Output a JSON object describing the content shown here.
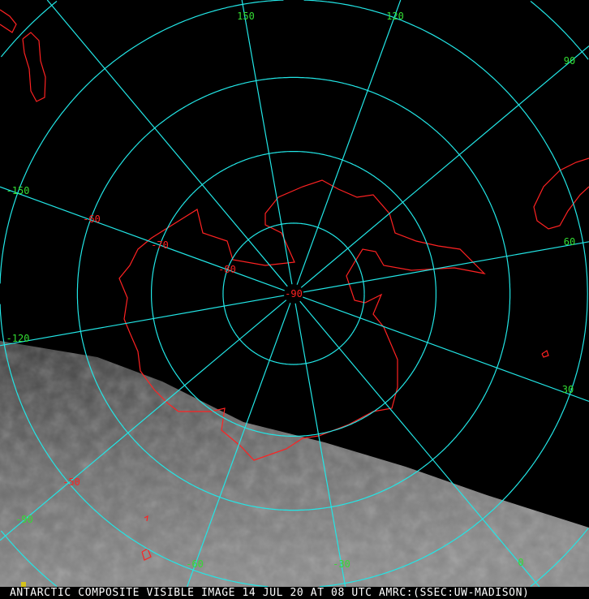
{
  "caption": "ANTARCTIC COMPOSITE VISIBLE IMAGE 14 JUL 20 AT 08 UTC AMRC:(SSEC:UW-MADISON)",
  "projection": "polar stereographic, south pole centered",
  "colors": {
    "graticule": "#22e6e6",
    "coastline": "#ff2222",
    "longitude_labels": "#33dd33",
    "latitude_labels": "#ff2222",
    "caption_text": "#ffffff"
  },
  "longitude_labels": [
    "150",
    "120",
    "90",
    "60",
    "30",
    "0",
    "-30",
    "-60",
    "-90",
    "-120",
    "-150"
  ],
  "longitudes": [
    150,
    120,
    90,
    60,
    30,
    0,
    -30,
    -60,
    -90,
    -120,
    -150,
    180
  ],
  "latitude_labels": [
    "-90",
    "-80",
    "-70",
    "-60",
    "-50"
  ],
  "latitudes": [
    -80,
    -70,
    -60,
    -50,
    -40
  ]
}
